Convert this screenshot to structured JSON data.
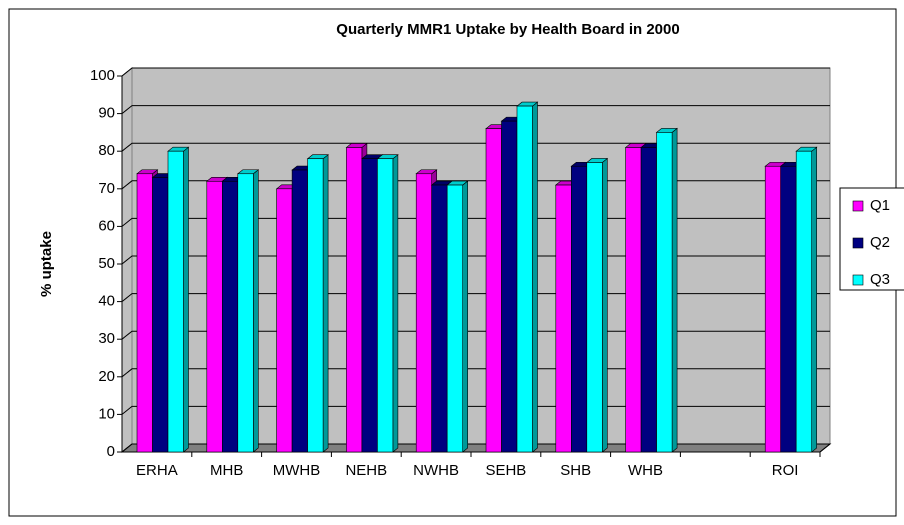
{
  "chart_data": {
    "type": "bar3d",
    "title": "Quarterly MMR1 Uptake by Health Board in 2000",
    "y_label": "% uptake",
    "categories": [
      "ERHA",
      "MHB",
      "MWHB",
      "NEHB",
      "NWHB",
      "SEHB",
      "SHB",
      "WHB",
      null,
      "ROI"
    ],
    "series": [
      {
        "name": "Q1",
        "color": "#ff00ff",
        "values": [
          74,
          72,
          70,
          81,
          74,
          86,
          71,
          81,
          null,
          76
        ]
      },
      {
        "name": "Q2",
        "color": "#000080",
        "values": [
          73,
          72,
          75,
          78,
          71,
          88,
          76,
          81,
          null,
          76
        ]
      },
      {
        "name": "Q3",
        "color": "#00ffff",
        "values": [
          80,
          74,
          78,
          78,
          71,
          92,
          77,
          85,
          null,
          80
        ]
      }
    ],
    "ylim": [
      0,
      100
    ],
    "yticks": [
      0,
      10,
      20,
      30,
      40,
      50,
      60,
      70,
      80,
      90,
      100
    ],
    "grid": true,
    "legend": "right"
  }
}
